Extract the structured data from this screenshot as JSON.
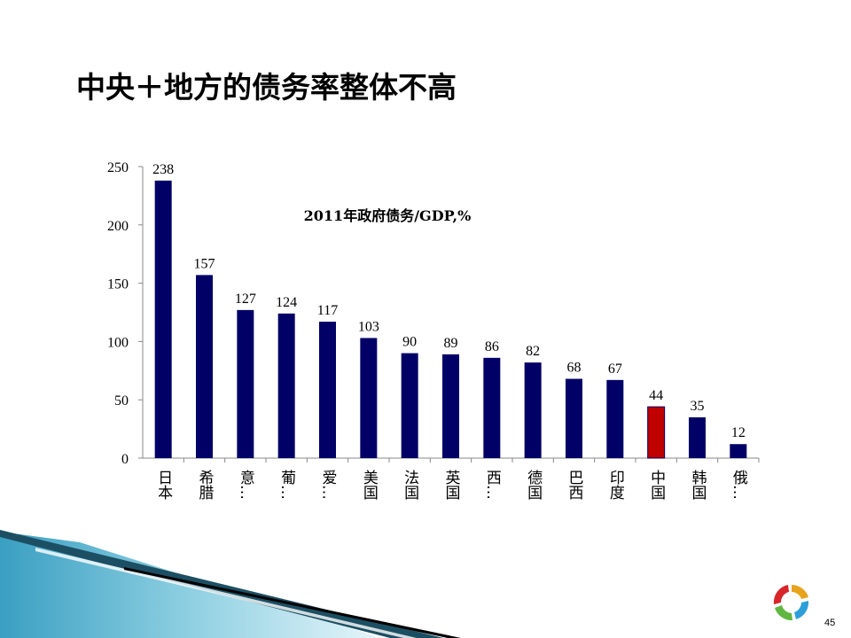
{
  "slide": {
    "title": "中央＋地方的债务率整体不高",
    "page_number": "45"
  },
  "chart_data": {
    "type": "bar",
    "title": "2011年政府债务/GDP,%",
    "categories": [
      "日本",
      "希腊",
      "意…",
      "葡…",
      "爱…",
      "美国",
      "法国",
      "英国",
      "西…",
      "德国",
      "巴西",
      "印度",
      "中国",
      "韩国",
      "俄…"
    ],
    "values": [
      238,
      157,
      127,
      124,
      117,
      103,
      90,
      89,
      86,
      82,
      68,
      67,
      44,
      35,
      12
    ],
    "ylim": [
      0,
      250
    ],
    "yticks": [
      0,
      50,
      100,
      150,
      200,
      250
    ],
    "highlight_index": 12,
    "colors": {
      "bar": "#000066",
      "highlight": "#c00000"
    },
    "grid": false,
    "legend": "none"
  }
}
